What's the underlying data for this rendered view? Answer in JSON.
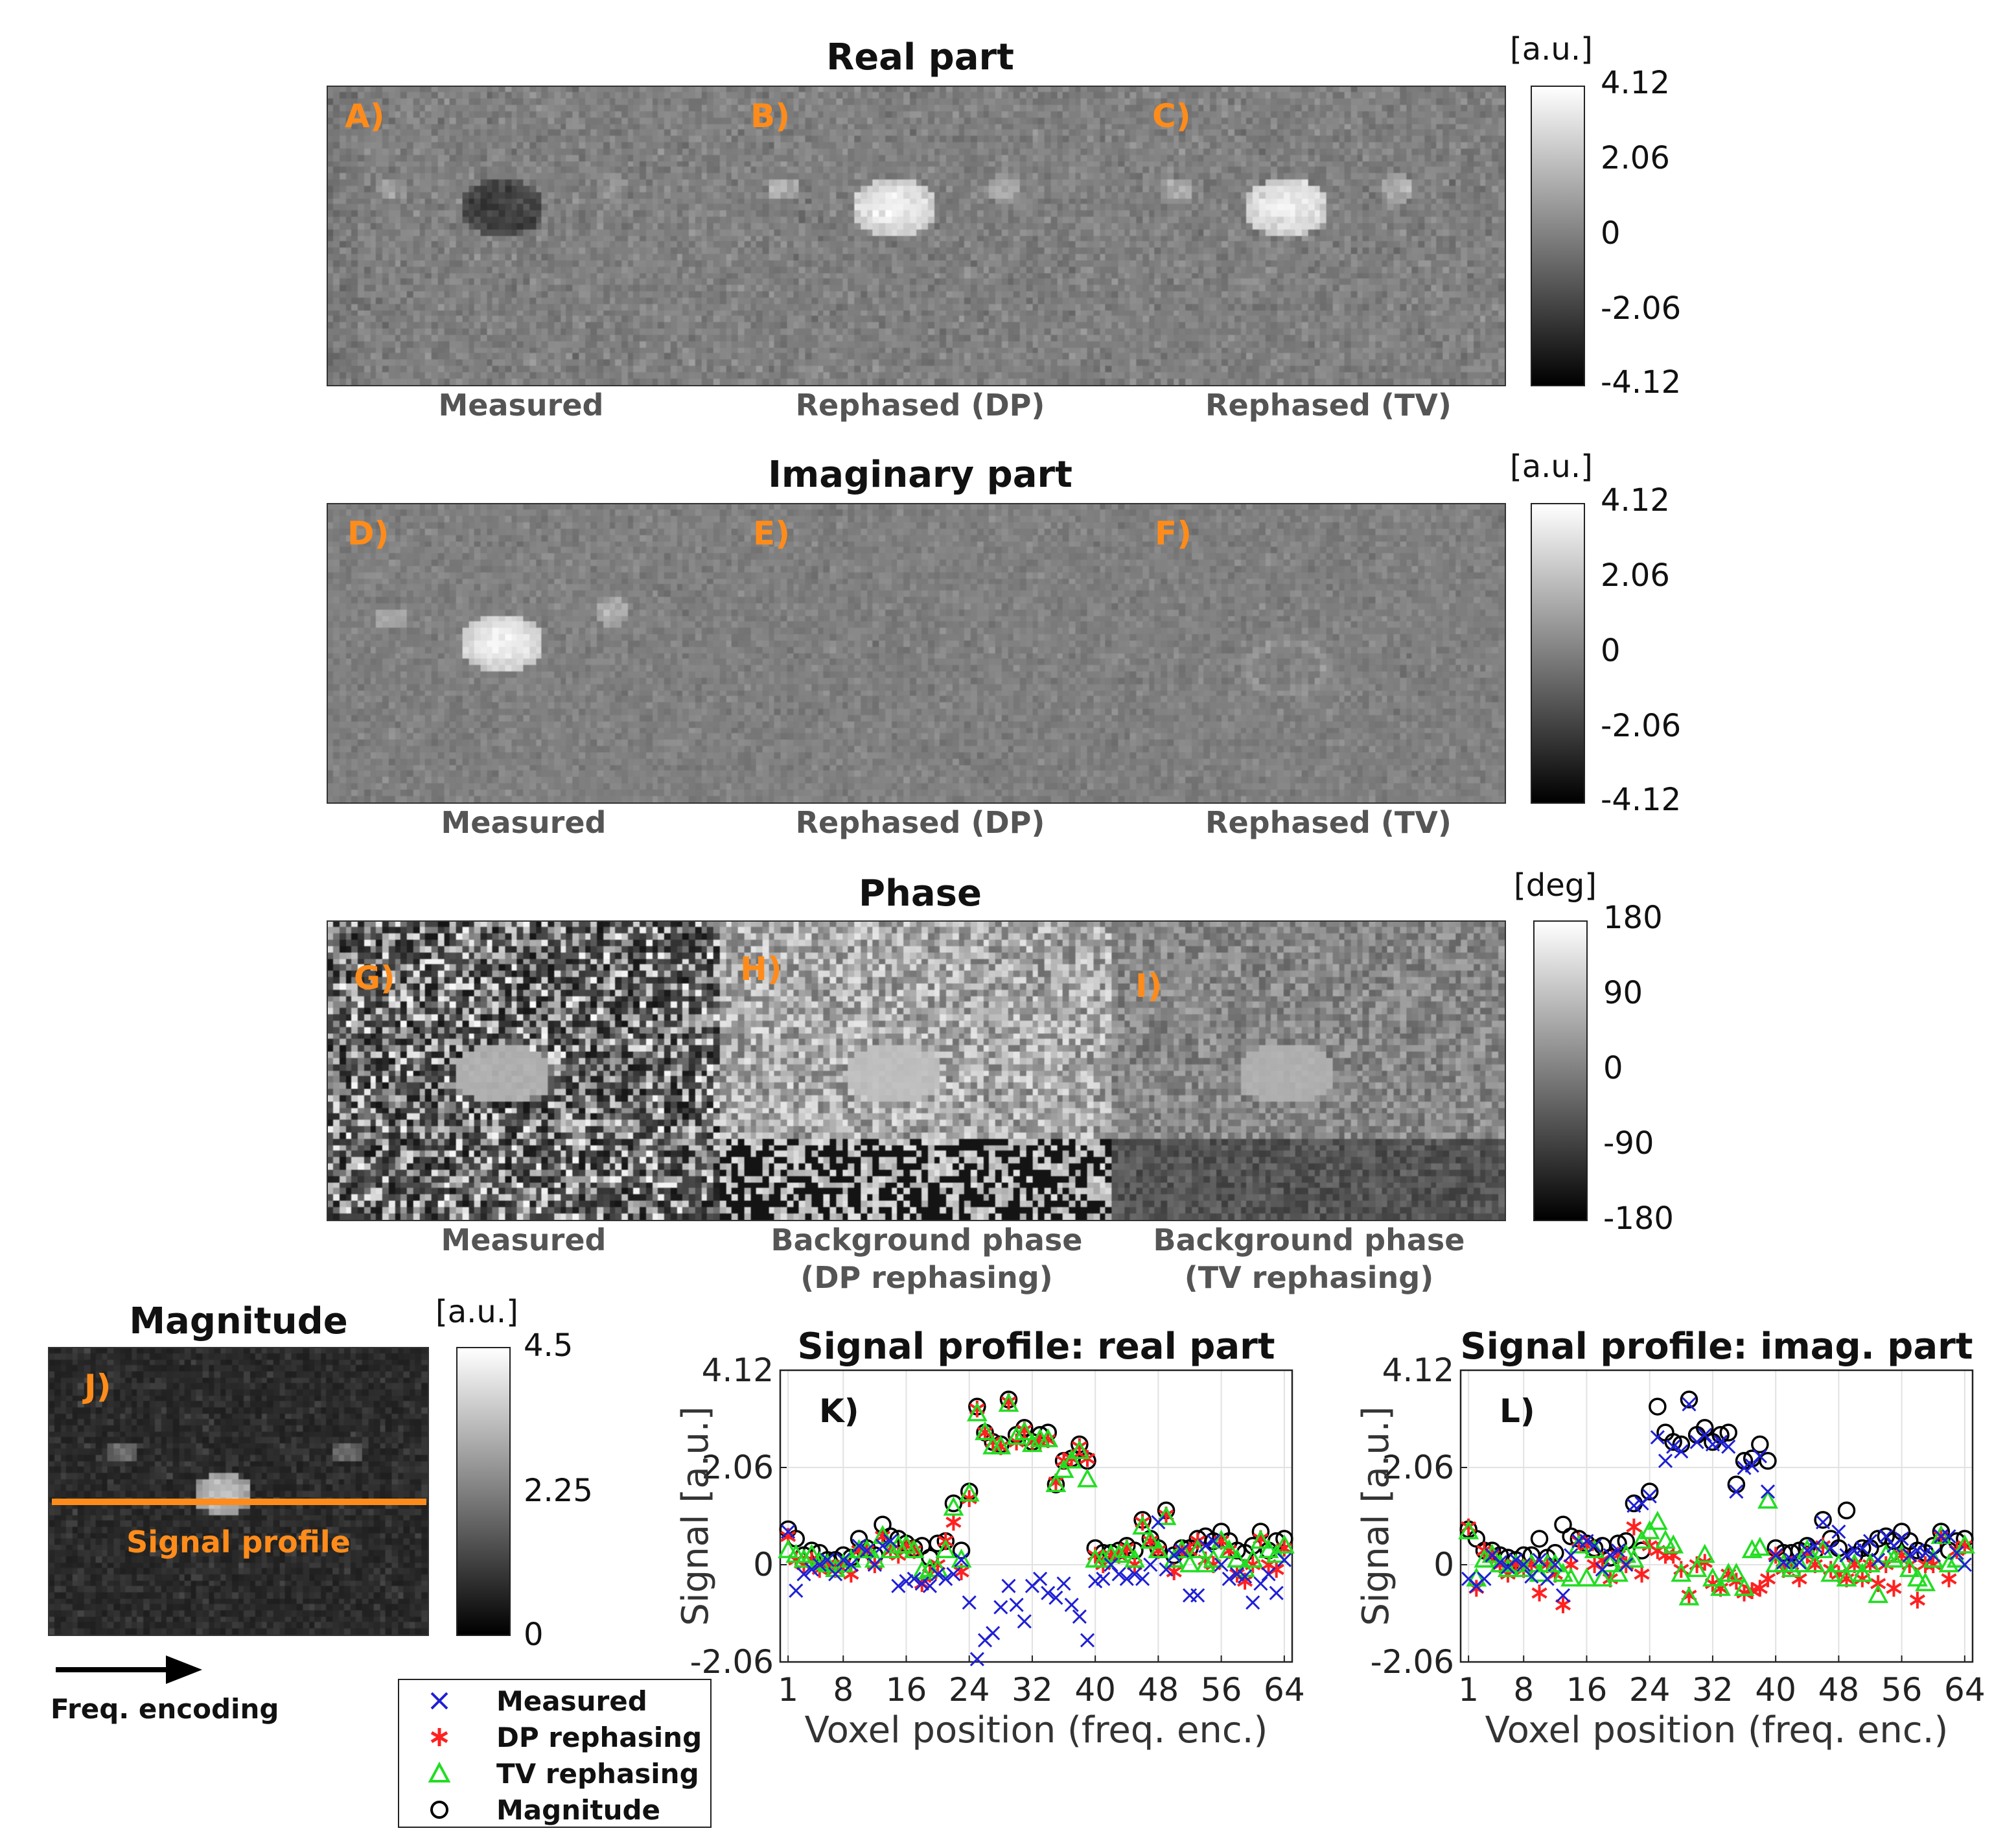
{
  "real_panel": {
    "title": "Real part",
    "letters": [
      "A)",
      "B)",
      "C)"
    ],
    "labels": [
      "Measured",
      "Rephased (DP)",
      "Rephased (TV)"
    ],
    "colorbar": {
      "unit": "[a.u.]",
      "ticks": [
        "4.12",
        "2.06",
        "0",
        "-2.06",
        "-4.12"
      ]
    }
  },
  "imag_panel": {
    "title": "Imaginary part",
    "letters": [
      "D)",
      "E)",
      "F)"
    ],
    "labels": [
      "Measured",
      "Rephased (DP)",
      "Rephased (TV)"
    ],
    "colorbar": {
      "unit": "[a.u.]",
      "ticks": [
        "4.12",
        "2.06",
        "0",
        "-2.06",
        "-4.12"
      ]
    }
  },
  "phase_panel": {
    "title": "Phase",
    "letters": [
      "G)",
      "H)",
      "I)"
    ],
    "labels": [
      "Measured",
      "Background phase\n(DP rephasing)",
      "Background phase\n(TV rephasing)"
    ],
    "colorbar": {
      "unit": "[deg]",
      "ticks": [
        "180",
        "90",
        "0",
        "-90",
        "-180"
      ]
    }
  },
  "magnitude_panel": {
    "title": "Magnitude",
    "letter": "J)",
    "profile_label": "Signal profile",
    "arrow_label": "Freq. encoding",
    "colorbar": {
      "unit": "[a.u.]",
      "ticks": [
        "4.5",
        "2.25",
        "0"
      ]
    }
  },
  "legend": {
    "items": [
      {
        "label": "Measured",
        "marker": "x",
        "color": "#1f1fd6"
      },
      {
        "label": "DP rephasing",
        "marker": "asterisk",
        "color": "#ff2020"
      },
      {
        "label": "TV rephasing",
        "marker": "triangle",
        "color": "#22dd22"
      },
      {
        "label": "Magnitude",
        "marker": "circle",
        "color": "#000000"
      }
    ]
  },
  "colors": {
    "panel_letter": "#ff8c1a",
    "profile_line": "#ff8c1a"
  },
  "chart_data": [
    {
      "type": "scatter",
      "title": "Signal profile: real part",
      "panel_letter": "K)",
      "xlabel": "Voxel position (freq. enc.)",
      "ylabel": "Signal [a.u.]",
      "xlim": [
        0,
        65
      ],
      "ylim": [
        -2.06,
        4.12
      ],
      "xticks": [
        1,
        8,
        16,
        24,
        32,
        40,
        48,
        56,
        64
      ],
      "yticks": [
        -2.06,
        0,
        2.06,
        4.12
      ],
      "ytick_labels": [
        "-2.06",
        "0",
        "2.06",
        "4.12"
      ],
      "grid": true,
      "x": [
        1,
        2,
        3,
        4,
        5,
        6,
        7,
        8,
        9,
        10,
        11,
        12,
        13,
        14,
        15,
        16,
        17,
        18,
        19,
        20,
        21,
        22,
        23,
        24,
        25,
        26,
        27,
        28,
        29,
        30,
        31,
        32,
        33,
        34,
        35,
        36,
        37,
        38,
        39,
        40,
        41,
        42,
        43,
        44,
        45,
        46,
        47,
        48,
        49,
        50,
        51,
        52,
        53,
        54,
        55,
        56,
        57,
        58,
        59,
        60,
        61,
        62,
        63,
        64
      ],
      "series": [
        {
          "name": "Measured",
          "values": [
            0.7,
            -0.55,
            -0.2,
            -0.1,
            0.0,
            0.1,
            -0.2,
            0.1,
            0.0,
            0.4,
            0.3,
            0.0,
            0.4,
            0.5,
            -0.45,
            -0.35,
            -0.3,
            -0.4,
            -0.45,
            -0.2,
            -0.3,
            -0.2,
            0.1,
            -0.8,
            -2.0,
            -1.6,
            -1.45,
            -0.9,
            -0.45,
            -0.85,
            -1.2,
            -0.45,
            -0.3,
            -0.6,
            -0.7,
            -0.4,
            -0.85,
            -1.1,
            -1.6,
            -0.35,
            -0.3,
            0.0,
            -0.2,
            -0.3,
            -0.2,
            -0.3,
            0.0,
            0.9,
            -0.1,
            0.2,
            0.3,
            -0.65,
            -0.65,
            0.4,
            0.5,
            0.0,
            -0.3,
            -0.2,
            -0.25,
            -0.8,
            -0.4,
            -0.2,
            -0.6,
            0.1
          ]
        },
        {
          "name": "DP rephasing",
          "values": [
            0.6,
            0.1,
            0.0,
            0.1,
            -0.1,
            0.0,
            -0.1,
            0.0,
            -0.2,
            0.3,
            0.3,
            0.0,
            0.6,
            0.3,
            0.2,
            0.4,
            0.3,
            -0.4,
            -0.2,
            0.0,
            0.5,
            0.9,
            -0.15,
            1.4,
            3.3,
            2.8,
            2.6,
            2.5,
            3.45,
            2.6,
            2.85,
            2.6,
            2.6,
            2.65,
            1.75,
            2.2,
            2.25,
            2.5,
            2.25,
            0.2,
            0.0,
            0.2,
            0.2,
            0.35,
            0.0,
            0.9,
            0.5,
            0.3,
            1.05,
            -0.15,
            0.3,
            0.3,
            0.5,
            0.1,
            0.0,
            0.5,
            0.3,
            -0.2,
            -0.35,
            0.0,
            0.55,
            0.0,
            -0.1,
            0.35
          ]
        },
        {
          "name": "TV rephasing",
          "values": [
            0.3,
            0.2,
            0.1,
            0.2,
            0.05,
            0.0,
            -0.1,
            0.0,
            0.1,
            0.3,
            0.3,
            0.1,
            0.6,
            0.3,
            0.4,
            0.4,
            0.3,
            -0.15,
            -0.1,
            -0.1,
            0.3,
            1.2,
            0.1,
            1.5,
            3.2,
            2.8,
            2.5,
            2.5,
            3.4,
            2.7,
            2.8,
            2.55,
            2.65,
            2.65,
            1.7,
            2.0,
            2.2,
            2.4,
            1.8,
            0.1,
            0.1,
            0.2,
            0.2,
            0.3,
            0.1,
            0.8,
            0.5,
            0.3,
            1.0,
            0.1,
            0.3,
            0.0,
            0.3,
            0.0,
            0.1,
            0.5,
            0.3,
            0.1,
            -0.1,
            0.1,
            0.5,
            0.3,
            0.2,
            0.4
          ]
        },
        {
          "name": "Magnitude",
          "values": [
            0.75,
            0.55,
            0.2,
            0.3,
            0.25,
            0.1,
            0.1,
            0.2,
            0.15,
            0.55,
            0.35,
            0.2,
            0.85,
            0.6,
            0.55,
            0.45,
            0.35,
            0.4,
            0.15,
            0.45,
            0.5,
            1.3,
            0.3,
            1.55,
            3.35,
            2.8,
            2.6,
            2.55,
            3.5,
            2.75,
            2.9,
            2.6,
            2.75,
            2.8,
            1.7,
            2.2,
            2.25,
            2.55,
            2.2,
            0.35,
            0.25,
            0.25,
            0.3,
            0.4,
            0.3,
            0.95,
            0.55,
            0.35,
            1.15,
            0.2,
            0.35,
            0.35,
            0.55,
            0.6,
            0.5,
            0.7,
            0.5,
            0.3,
            0.25,
            0.4,
            0.7,
            0.3,
            0.5,
            0.55
          ]
        }
      ]
    },
    {
      "type": "scatter",
      "title": "Signal profile: imag. part",
      "panel_letter": "L)",
      "xlabel": "Voxel position (freq. enc.)",
      "ylabel": "Signal [a.u.]",
      "xlim": [
        0,
        65
      ],
      "ylim": [
        -2.06,
        4.12
      ],
      "xticks": [
        1,
        8,
        16,
        24,
        32,
        40,
        48,
        56,
        64
      ],
      "yticks": [
        -2.06,
        0,
        2.06,
        4.12
      ],
      "ytick_labels": [
        "-2.06",
        "0",
        "2.06",
        "4.12"
      ],
      "grid": true,
      "x": [
        1,
        2,
        3,
        4,
        5,
        6,
        7,
        8,
        9,
        10,
        11,
        12,
        13,
        14,
        15,
        16,
        17,
        18,
        19,
        20,
        21,
        22,
        23,
        24,
        25,
        26,
        27,
        28,
        29,
        30,
        31,
        32,
        33,
        34,
        35,
        36,
        37,
        38,
        39,
        40,
        41,
        42,
        43,
        44,
        45,
        46,
        47,
        48,
        49,
        50,
        51,
        52,
        53,
        54,
        55,
        56,
        57,
        58,
        59,
        60,
        61,
        62,
        63,
        64
      ],
      "series": [
        {
          "name": "Measured",
          "values": [
            -0.3,
            -0.45,
            -0.3,
            0.2,
            0.05,
            -0.05,
            0.1,
            0.0,
            -0.25,
            0.1,
            -0.3,
            0.0,
            -0.65,
            0.2,
            0.5,
            0.5,
            0.4,
            -0.1,
            0.2,
            0.3,
            0.0,
            1.25,
            1.3,
            1.45,
            2.7,
            2.2,
            2.5,
            2.4,
            3.4,
            2.6,
            2.75,
            2.55,
            2.6,
            2.5,
            1.55,
            2.05,
            2.1,
            2.3,
            1.55,
            0.2,
            0.05,
            0.1,
            0.05,
            0.3,
            0.4,
            0.9,
            0.35,
            0.7,
            0.2,
            0.3,
            0.35,
            0.5,
            0.1,
            0.6,
            0.4,
            0.55,
            0.2,
            0.3,
            0.25,
            0.2,
            0.6,
            0.6,
            0.25,
            0.0
          ]
        },
        {
          "name": "DP rephasing",
          "values": [
            0.8,
            -0.5,
            0.3,
            0.2,
            0.0,
            -0.2,
            0.0,
            -0.1,
            0.0,
            -0.6,
            0.0,
            -0.2,
            -0.85,
            0.0,
            0.5,
            0.4,
            0.0,
            0.1,
            -0.3,
            0.2,
            0.0,
            0.8,
            -0.2,
            0.4,
            0.3,
            0.2,
            0.2,
            -0.1,
            -0.65,
            0.0,
            0.05,
            -0.4,
            -0.5,
            -0.2,
            -0.35,
            -0.6,
            -0.55,
            -0.5,
            -0.3,
            0.2,
            -0.1,
            0.0,
            -0.3,
            0.2,
            0.0,
            0.4,
            -0.1,
            -0.2,
            -0.3,
            0.0,
            -0.3,
            0.0,
            -0.4,
            0.0,
            -0.5,
            0.2,
            0.0,
            -0.75,
            0.0,
            0.0,
            0.6,
            -0.3,
            0.3,
            0.4
          ]
        },
        {
          "name": "TV rephasing",
          "values": [
            0.7,
            -0.3,
            0.1,
            0.2,
            0.0,
            -0.1,
            0.0,
            -0.1,
            0.0,
            -0.2,
            0.0,
            0.0,
            -0.2,
            -0.3,
            0.4,
            -0.3,
            0.3,
            -0.3,
            0.0,
            -0.2,
            0.2,
            0.1,
            0.5,
            0.7,
            0.9,
            0.5,
            0.4,
            -0.2,
            -0.7,
            -0.1,
            0.2,
            -0.3,
            -0.5,
            -0.2,
            -0.2,
            -0.5,
            0.3,
            0.35,
            1.35,
            0.0,
            0.0,
            -0.1,
            0.0,
            0.3,
            0.0,
            0.3,
            -0.2,
            0.0,
            -0.3,
            0.0,
            -0.2,
            0.0,
            -0.65,
            0.2,
            0.1,
            0.2,
            -0.1,
            -0.3,
            -0.4,
            0.1,
            0.6,
            0.0,
            0.1,
            0.4
          ]
        },
        {
          "name": "Magnitude",
          "values": [
            0.75,
            0.55,
            0.3,
            0.3,
            0.2,
            0.15,
            0.1,
            0.2,
            0.2,
            0.55,
            0.15,
            0.25,
            0.85,
            0.6,
            0.55,
            0.45,
            0.35,
            0.4,
            0.15,
            0.45,
            0.5,
            1.3,
            0.3,
            1.55,
            3.35,
            2.8,
            2.6,
            2.55,
            3.5,
            2.75,
            2.9,
            2.6,
            2.75,
            2.8,
            1.7,
            2.2,
            2.25,
            2.55,
            2.2,
            0.35,
            0.25,
            0.25,
            0.3,
            0.4,
            0.3,
            0.95,
            0.55,
            0.35,
            1.15,
            0.2,
            0.35,
            0.35,
            0.55,
            0.6,
            0.5,
            0.7,
            0.5,
            0.3,
            0.25,
            0.4,
            0.7,
            0.3,
            0.5,
            0.55
          ]
        }
      ]
    }
  ]
}
